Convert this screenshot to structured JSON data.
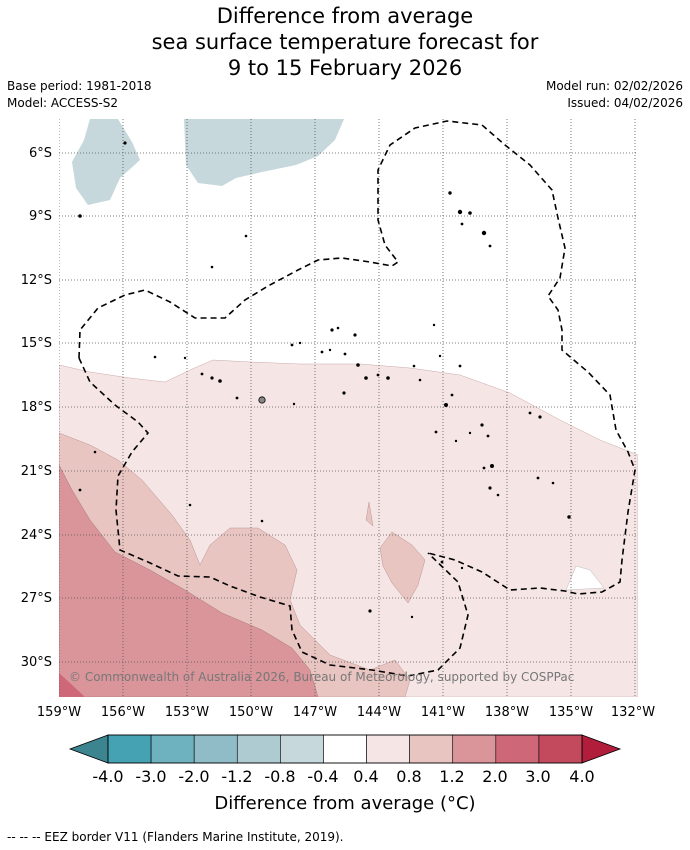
{
  "title": {
    "line1": "Difference from average",
    "line2": "sea surface temperature forecast for",
    "line3": "9 to 15 February 2026"
  },
  "meta": {
    "base_period": "Base period: 1981-2018",
    "model": "Model: ACCESS-S2",
    "model_run": "Model run: 02/02/2026",
    "issued": "Issued: 04/02/2026"
  },
  "map": {
    "lat_labels": [
      "6°S",
      "9°S",
      "12°S",
      "15°S",
      "18°S",
      "21°S",
      "24°S",
      "27°S",
      "30°S"
    ],
    "lon_labels": [
      "159°W",
      "156°W",
      "153°W",
      "150°W",
      "147°W",
      "144°W",
      "141°W",
      "138°W",
      "135°W",
      "132°W"
    ],
    "copyright": "© Commonwealth of Australia 2026, Bureau of Meteorology, supported by COSPPac"
  },
  "colorbar": {
    "labels": [
      "-4.0",
      "-3.0",
      "-2.0",
      "-1.2",
      "-0.8",
      "-0.4",
      "0.4",
      "0.8",
      "1.2",
      "2.0",
      "3.0",
      "4.0"
    ],
    "colors": [
      "#45a2b3",
      "#6eb1bf",
      "#8fbcc6",
      "#adcbd0",
      "#c6d8dc",
      "#ffffff",
      "#f5e6e5",
      "#e9c5c2",
      "#da959b",
      "#ce6878",
      "#c34a5d"
    ],
    "under_color": "#3c8490",
    "over_color": "#b01e3c",
    "title_text": "Difference from average (",
    "title_unit": "°C)"
  },
  "legend": {
    "eez_label": "-- -- -- EEZ border V11 (Flanders Marine Institute, 2019)."
  }
}
